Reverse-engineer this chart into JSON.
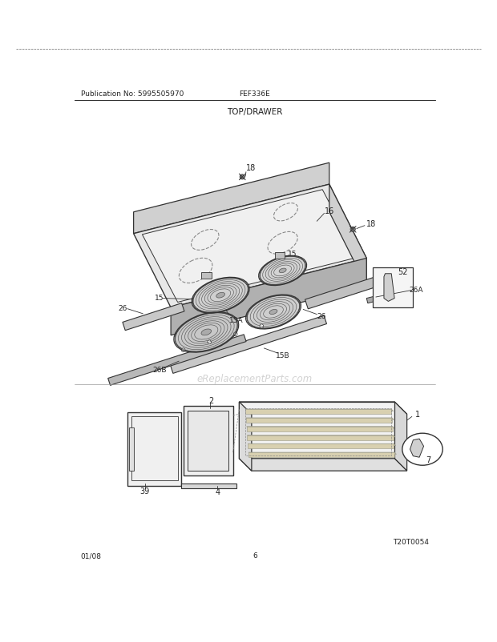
{
  "title": "TOP/DRAWER",
  "pub_no": "Publication No: 5995505970",
  "model": "FEF336E",
  "date": "01/08",
  "page": "6",
  "watermark": "eReplacementParts.com",
  "diagram_id": "T20T0054",
  "bg": "#ffffff",
  "lc": "#333333",
  "lc_thin": "#666666",
  "gray_fill": "#e8e8e8",
  "gray_mid": "#d0d0d0",
  "gray_dark": "#b0b0b0"
}
